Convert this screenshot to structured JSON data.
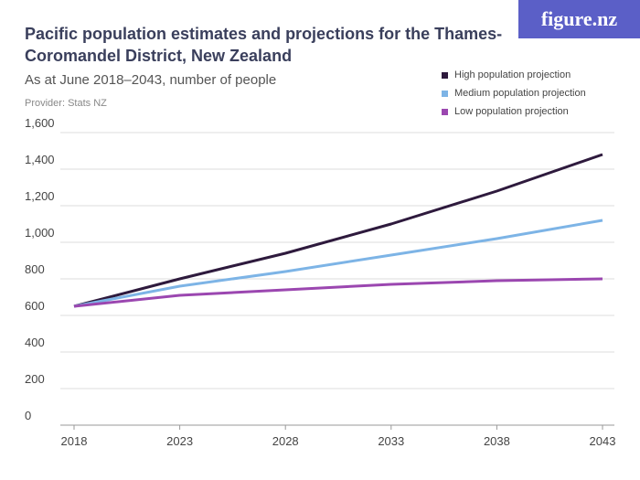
{
  "title": "Pacific population estimates and projections for the Thames-Coromandel District, New Zealand",
  "subtitle": "As at June 2018–2043, number of people",
  "provider": "Provider: Stats NZ",
  "logo": "figure.nz",
  "chart_data": {
    "type": "line",
    "x": [
      2018,
      2023,
      2028,
      2033,
      2038,
      2043
    ],
    "xticks": [
      "2018",
      "2023",
      "2028",
      "2033",
      "2038",
      "2043"
    ],
    "yticks": [
      "0",
      "200",
      "400",
      "600",
      "800",
      "1,000",
      "1,200",
      "1,400",
      "1,600"
    ],
    "ylim": [
      0,
      1600
    ],
    "grid": true,
    "legend_position": "top-right",
    "series": [
      {
        "name": "High population projection",
        "color": "#2e1a3d",
        "values": [
          650,
          800,
          940,
          1100,
          1280,
          1480
        ]
      },
      {
        "name": "Medium population projection",
        "color": "#7db4e6",
        "values": [
          650,
          760,
          840,
          930,
          1020,
          1120
        ]
      },
      {
        "name": "Low population projection",
        "color": "#9b47b0",
        "values": [
          650,
          710,
          740,
          770,
          790,
          800
        ]
      }
    ]
  }
}
